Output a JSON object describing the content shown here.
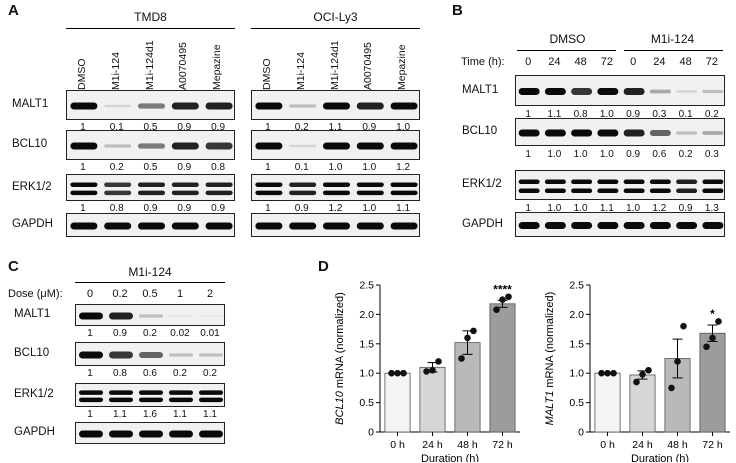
{
  "panelA": {
    "label": "A",
    "groups": [
      "TMD8",
      "OCI-Ly3"
    ],
    "lanes": [
      "DMSO",
      "M1i-124",
      "M1i-124d1",
      "A0070495",
      "Mepazine"
    ],
    "rows": [
      {
        "name": "MALT1",
        "values": [
          [
            "1",
            "0.1",
            "0.5",
            "0.9",
            "0.9"
          ],
          [
            "1",
            "0.2",
            "1.1",
            "0.9",
            "1.0"
          ]
        ]
      },
      {
        "name": "BCL10",
        "values": [
          [
            "1",
            "0.2",
            "0.5",
            "0.9",
            "0.8"
          ],
          [
            "1",
            "0.1",
            "1.0",
            "1.0",
            "1.2"
          ]
        ]
      },
      {
        "name": "ERK1/2",
        "values": [
          [
            "1",
            "0.8",
            "0.9",
            "0.9",
            "0.9"
          ],
          [
            "1",
            "0.9",
            "1.2",
            "1.0",
            "1.1"
          ]
        ]
      },
      {
        "name": "GAPDH",
        "values": null
      }
    ]
  },
  "panelB": {
    "label": "B",
    "groups": [
      "DMSO",
      "M1i-124"
    ],
    "time_label": "Time (h):",
    "times": [
      "0",
      "24",
      "48",
      "72",
      "0",
      "24",
      "48",
      "72"
    ],
    "rows": [
      {
        "name": "MALT1",
        "values": [
          "1",
          "1.1",
          "0.8",
          "1.0",
          "0.9",
          "0.3",
          "0.1",
          "0.2"
        ]
      },
      {
        "name": "BCL10",
        "values": [
          "1",
          "1.0",
          "1.0",
          "1.0",
          "0.9",
          "0.6",
          "0.2",
          "0.3"
        ]
      },
      {
        "name": "ERK1/2",
        "values": [
          "1",
          "1.0",
          "1.0",
          "1.1",
          "1.0",
          "1.2",
          "0.9",
          "1.3"
        ]
      },
      {
        "name": "GAPDH",
        "values": null
      }
    ]
  },
  "panelC": {
    "label": "C",
    "group": "M1i-124",
    "dose_label": "Dose (μM):",
    "doses": [
      "0",
      "0.2",
      "0.5",
      "1",
      "2"
    ],
    "rows": [
      {
        "name": "MALT1",
        "values": [
          "1",
          "0.9",
          "0.2",
          "0.02",
          "0.01"
        ]
      },
      {
        "name": "BCL10",
        "values": [
          "1",
          "0.8",
          "0.6",
          "0.2",
          "0.2"
        ]
      },
      {
        "name": "ERK1/2",
        "values": [
          "1",
          "1.1",
          "1.6",
          "1.1",
          "1.1"
        ]
      },
      {
        "name": "GAPDH",
        "values": null
      }
    ]
  },
  "panelD": {
    "label": "D",
    "xlabel": "Duration (h)"
  },
  "chart_data": [
    {
      "type": "bar",
      "ylabel_italic": "BCL10",
      "ylabel_rest": " mRNA (normalized)",
      "xlabel": "Duration (h)",
      "categories": [
        "0 h",
        "24 h",
        "48 h",
        "72 h"
      ],
      "values": [
        1.0,
        1.1,
        1.52,
        2.18
      ],
      "errors": [
        0.0,
        0.08,
        0.2,
        0.06
      ],
      "points": [
        [
          1.0,
          1.0,
          1.0
        ],
        [
          1.03,
          1.05,
          1.2
        ],
        [
          1.25,
          1.6,
          1.72
        ],
        [
          2.08,
          2.25,
          2.3
        ]
      ],
      "bar_colors": [
        "#f4f4f4",
        "#d6d6d6",
        "#b9b9b9",
        "#9c9c9c"
      ],
      "significance": [
        "",
        "",
        "",
        "****"
      ],
      "ylim": [
        0,
        2.5
      ],
      "yticks": [
        "0",
        "0.5",
        "1.0",
        "1.5",
        "2.0",
        "2.5"
      ]
    },
    {
      "type": "bar",
      "ylabel_italic": "MALT1",
      "ylabel_rest": " mRNA (normalized)",
      "xlabel": "Duration (h)",
      "categories": [
        "0 h",
        "24 h",
        "48 h",
        "72 h"
      ],
      "values": [
        1.0,
        0.97,
        1.25,
        1.68
      ],
      "errors": [
        0.0,
        0.07,
        0.33,
        0.14
      ],
      "points": [
        [
          1.0,
          1.0,
          1.0
        ],
        [
          0.85,
          0.98,
          1.05
        ],
        [
          0.75,
          1.2,
          1.8
        ],
        [
          1.45,
          1.6,
          1.88
        ]
      ],
      "bar_colors": [
        "#f4f4f4",
        "#d6d6d6",
        "#b9b9b9",
        "#9c9c9c"
      ],
      "significance": [
        "",
        "",
        "",
        "*"
      ],
      "ylim": [
        0,
        2.5
      ],
      "yticks": [
        "0",
        "0.5",
        "1.0",
        "1.5",
        "2.0",
        "2.5"
      ]
    }
  ]
}
